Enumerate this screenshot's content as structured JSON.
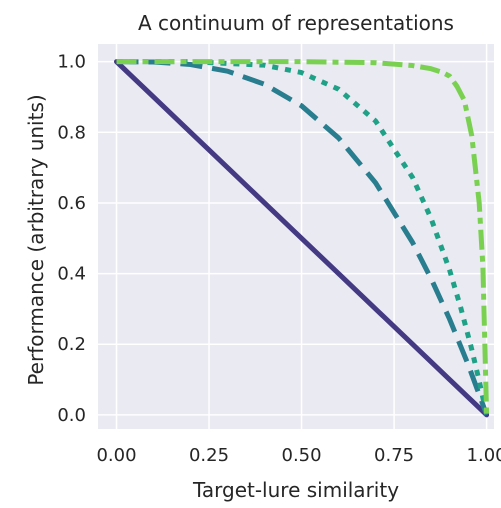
{
  "chart_data": {
    "type": "line",
    "title": "A continuum of representations",
    "xlabel": "Target-lure similarity",
    "ylabel": "Performance (arbitrary units)",
    "xlim": [
      -0.05,
      1.02
    ],
    "ylim": [
      -0.04,
      1.05
    ],
    "x_ticks": [
      0.0,
      0.25,
      0.5,
      0.75,
      1.0
    ],
    "x_tick_labels": [
      "0.00",
      "0.25",
      "0.50",
      "0.75",
      "1.00"
    ],
    "y_ticks": [
      0.0,
      0.2,
      0.4,
      0.6,
      0.8,
      1.0
    ],
    "y_tick_labels": [
      "0.0",
      "0.2",
      "0.4",
      "0.6",
      "0.8",
      "1.0"
    ],
    "grid": true,
    "background_color": "#eaeaf2",
    "grid_color": "#ffffff",
    "series": [
      {
        "style": "solid",
        "color": "#443983",
        "x": [
          0.0,
          0.1,
          0.2,
          0.3,
          0.4,
          0.5,
          0.6,
          0.7,
          0.8,
          0.9,
          1.0
        ],
        "y": [
          1.0,
          0.9,
          0.8,
          0.7,
          0.6,
          0.5,
          0.4,
          0.3,
          0.2,
          0.1,
          0.0
        ]
      },
      {
        "style": "dashed",
        "color": "#287d8e",
        "x": [
          0.0,
          0.1,
          0.2,
          0.3,
          0.4,
          0.5,
          0.6,
          0.7,
          0.8,
          0.85,
          0.9,
          0.95,
          1.0
        ],
        "y": [
          1.0,
          0.999,
          0.992,
          0.973,
          0.936,
          0.875,
          0.784,
          0.657,
          0.488,
          0.386,
          0.271,
          0.143,
          0.0
        ]
      },
      {
        "style": "dotted",
        "color": "#1fa187",
        "x": [
          0.0,
          0.2,
          0.4,
          0.5,
          0.6,
          0.7,
          0.8,
          0.85,
          0.9,
          0.93,
          0.96,
          0.98,
          1.0
        ],
        "y": [
          1.0,
          1.0,
          0.99,
          0.969,
          0.922,
          0.832,
          0.672,
          0.556,
          0.41,
          0.304,
          0.185,
          0.096,
          0.0
        ]
      },
      {
        "style": "dashdot",
        "color": "#7ad151",
        "x": [
          0.0,
          0.5,
          0.7,
          0.8,
          0.85,
          0.88,
          0.9,
          0.92,
          0.94,
          0.96,
          0.98,
          0.99,
          1.0
        ],
        "y": [
          1.0,
          1.0,
          0.997,
          0.989,
          0.98,
          0.97,
          0.959,
          0.93,
          0.89,
          0.79,
          0.6,
          0.42,
          0.0
        ]
      }
    ]
  }
}
